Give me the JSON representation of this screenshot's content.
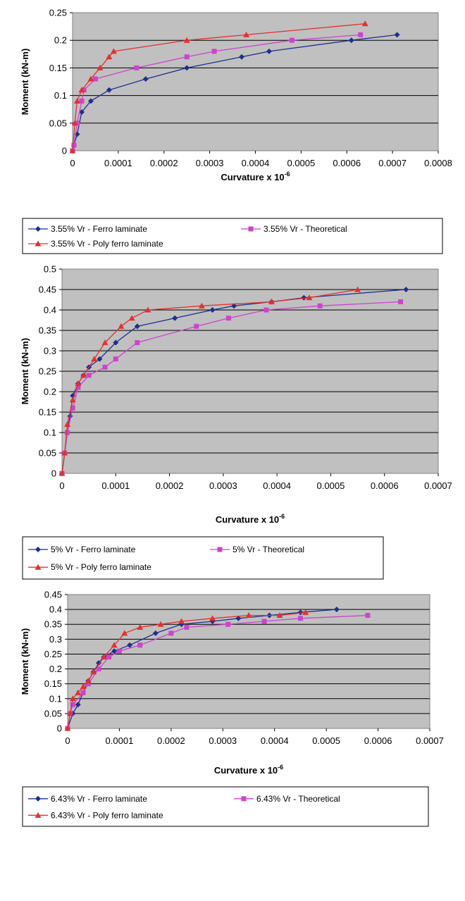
{
  "chart_data": [
    {
      "type": "line",
      "xlabel": "Curvature x 10",
      "xlabel_sup": "-6",
      "ylabel": "Moment (kN-m)",
      "xlim": [
        0,
        0.0008
      ],
      "ylim": [
        0,
        0.25
      ],
      "x_ticks": [
        "0",
        "0.0001",
        "0.0002",
        "0.0003",
        "0.0004",
        "0.0005",
        "0.0006",
        "0.0007",
        "0.0008"
      ],
      "y_ticks": [
        "0",
        "0.05",
        "0.1",
        "0.15",
        "0.2",
        "0.25"
      ],
      "grid": true,
      "legend_position": "bottom",
      "series": [
        {
          "name": "3.55% Vr -  Ferro laminate",
          "color": "#1f2f8f",
          "marker": "diamond",
          "x": [
            0,
            3e-06,
            1e-05,
            2e-05,
            4e-05,
            8e-05,
            0.00016,
            0.00025,
            0.00037,
            0.00043,
            0.00061,
            0.00071
          ],
          "y": [
            0,
            0.01,
            0.03,
            0.07,
            0.09,
            0.11,
            0.13,
            0.15,
            0.17,
            0.18,
            0.2,
            0.21
          ]
        },
        {
          "name": "3.55% Vr - Theoretical",
          "color": "#cc44cc",
          "marker": "square",
          "x": [
            0,
            3e-06,
            1e-05,
            2e-05,
            2.5e-05,
            5e-05,
            0.00014,
            0.00025,
            0.00031,
            0.00048,
            0.00063
          ],
          "y": [
            0,
            0.01,
            0.05,
            0.09,
            0.11,
            0.13,
            0.15,
            0.17,
            0.18,
            0.2,
            0.21
          ]
        },
        {
          "name": "3.55% Vr - Poly ferro laminate",
          "color": "#e23030",
          "marker": "triangle",
          "x": [
            0,
            5e-06,
            1e-05,
            2e-05,
            4e-05,
            6e-05,
            8e-05,
            9e-05,
            0.00025,
            0.00038,
            0.00064
          ],
          "y": [
            0,
            0.05,
            0.09,
            0.11,
            0.13,
            0.15,
            0.17,
            0.18,
            0.2,
            0.21,
            0.23
          ]
        }
      ]
    },
    {
      "type": "line",
      "xlabel": "Curvature x 10",
      "xlabel_sup": "-6",
      "ylabel": "Moment (kN-m)",
      "xlim": [
        0,
        0.0007
      ],
      "ylim": [
        0,
        0.5
      ],
      "x_ticks": [
        "0",
        "0.0001",
        "0.0002",
        "0.0003",
        "0.0004",
        "0.0005",
        "0.0006",
        "0.0007"
      ],
      "y_ticks": [
        "0",
        "0.05",
        "0.1",
        "0.15",
        "0.2",
        "0.25",
        "0.3",
        "0.35",
        "0.4",
        "0.45",
        "0.5"
      ],
      "grid": true,
      "legend_position": "bottom",
      "series": [
        {
          "name": "5% Vr - Ferro laminate",
          "color": "#1f2f8f",
          "marker": "diamond",
          "x": [
            0,
            5e-06,
            1e-05,
            1.5e-05,
            2e-05,
            3e-05,
            4e-05,
            5e-05,
            7e-05,
            0.0001,
            0.00014,
            0.00021,
            0.00028,
            0.00032,
            0.00039,
            0.00045,
            0.00064
          ],
          "y": [
            0,
            0.05,
            0.1,
            0.14,
            0.19,
            0.22,
            0.24,
            0.26,
            0.28,
            0.32,
            0.36,
            0.38,
            0.4,
            0.41,
            0.42,
            0.43,
            0.45
          ]
        },
        {
          "name": "5% Vr - Theoretical",
          "color": "#cc44cc",
          "marker": "square",
          "x": [
            0,
            5e-06,
            1e-05,
            2e-05,
            3e-05,
            5e-05,
            8e-05,
            0.0001,
            0.00014,
            0.00025,
            0.00031,
            0.00038,
            0.00048,
            0.00063
          ],
          "y": [
            0,
            0.05,
            0.1,
            0.16,
            0.21,
            0.24,
            0.26,
            0.28,
            0.32,
            0.36,
            0.38,
            0.4,
            0.41,
            0.42
          ]
        },
        {
          "name": "5% Vr - Poly ferro laminate",
          "color": "#e23030",
          "marker": "triangle",
          "x": [
            0,
            5e-06,
            1e-05,
            2e-05,
            3e-05,
            4e-05,
            6e-05,
            8e-05,
            0.00011,
            0.00013,
            0.00016,
            0.00026,
            0.00039,
            0.00046,
            0.00055
          ],
          "y": [
            0,
            0.05,
            0.12,
            0.18,
            0.22,
            0.24,
            0.28,
            0.32,
            0.36,
            0.38,
            0.4,
            0.41,
            0.42,
            0.43,
            0.45
          ]
        }
      ]
    },
    {
      "type": "line",
      "xlabel": "Curvature x 10",
      "xlabel_sup": "-6",
      "ylabel": "Moment (kN-m)",
      "xlim": [
        0,
        0.0007
      ],
      "ylim": [
        0,
        0.45
      ],
      "x_ticks": [
        "0",
        "0.0001",
        "0.0002",
        "0.0003",
        "0.0004",
        "0.0005",
        "0.0006",
        "0.0007"
      ],
      "y_ticks": [
        "0",
        "0.05",
        "0.1",
        "0.15",
        "0.2",
        "0.25",
        "0.3",
        "0.35",
        "0.4",
        "0.45"
      ],
      "grid": true,
      "legend_position": "bottom",
      "series": [
        {
          "name": "6.43% Vr - Ferro laminate",
          "color": "#1f2f8f",
          "marker": "diamond",
          "x": [
            0,
            1e-05,
            2e-05,
            3e-05,
            4e-05,
            5e-05,
            6e-05,
            7e-05,
            9e-05,
            0.00012,
            0.00017,
            0.00022,
            0.00028,
            0.00033,
            0.00039,
            0.00045,
            0.00052
          ],
          "y": [
            0,
            0.05,
            0.08,
            0.12,
            0.16,
            0.19,
            0.22,
            0.24,
            0.26,
            0.28,
            0.32,
            0.35,
            0.36,
            0.37,
            0.38,
            0.39,
            0.4
          ]
        },
        {
          "name": "6.43% Vr - Theoretical",
          "color": "#cc44cc",
          "marker": "square",
          "x": [
            0,
            5e-06,
            1e-05,
            3e-05,
            4e-05,
            6e-05,
            8e-05,
            0.0001,
            0.00014,
            0.0002,
            0.00023,
            0.00031,
            0.00038,
            0.00045,
            0.00058
          ],
          "y": [
            0,
            0.05,
            0.08,
            0.12,
            0.15,
            0.2,
            0.24,
            0.26,
            0.28,
            0.32,
            0.34,
            0.35,
            0.36,
            0.37,
            0.38
          ]
        },
        {
          "name": "6.43% Vr - Poly ferro laminate",
          "color": "#e23030",
          "marker": "triangle",
          "x": [
            0,
            5e-06,
            1e-05,
            2e-05,
            3e-05,
            4e-05,
            5e-05,
            7e-05,
            9e-05,
            0.00011,
            0.00014,
            0.00018,
            0.00022,
            0.00028,
            0.00035,
            0.00041,
            0.00046
          ],
          "y": [
            0,
            0.05,
            0.1,
            0.12,
            0.14,
            0.16,
            0.19,
            0.24,
            0.28,
            0.32,
            0.34,
            0.35,
            0.36,
            0.37,
            0.38,
            0.38,
            0.39
          ]
        }
      ]
    }
  ]
}
